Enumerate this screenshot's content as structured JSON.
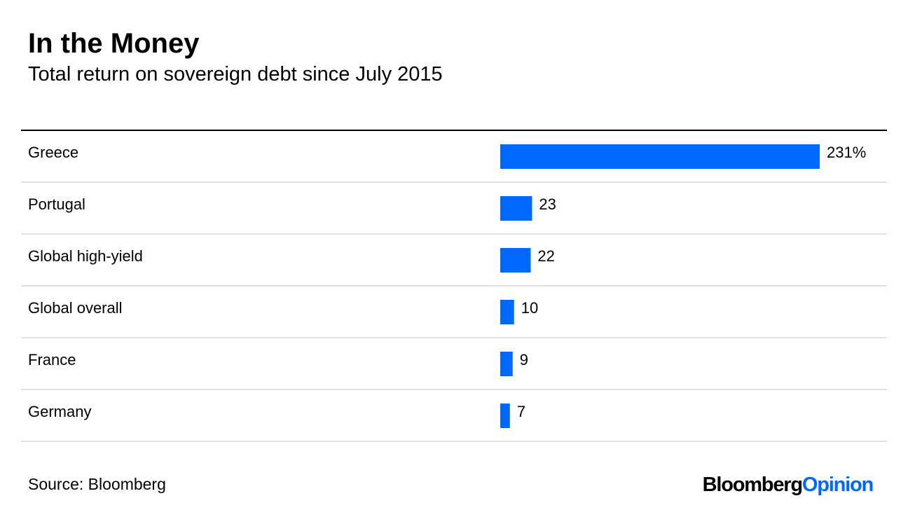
{
  "title": "In the Money",
  "subtitle": "Total return on sovereign debt since July 2015",
  "source": "Source: Bloomberg",
  "logo": {
    "brand": "Bloomberg",
    "section": "Opinion"
  },
  "colors": {
    "bar": "#0068ff",
    "text": "#000000",
    "divider": "#e1e1e1",
    "top_rule": "#000000",
    "logo_brand": "#000000",
    "logo_section": "#0068ff"
  },
  "chart_data": {
    "type": "bar",
    "orientation": "horizontal",
    "title": "In the Money",
    "subtitle": "Total return on sovereign debt since July 2015",
    "categories": [
      "Greece",
      "Portugal",
      "Global high-yield",
      "Global overall",
      "France",
      "Germany"
    ],
    "values": [
      231,
      23,
      22,
      10,
      9,
      7
    ],
    "value_labels": [
      "231%",
      "23",
      "22",
      "10",
      "9",
      "7"
    ],
    "unit": "%",
    "xlim": [
      0,
      231
    ],
    "grid": false,
    "legend": "none"
  }
}
